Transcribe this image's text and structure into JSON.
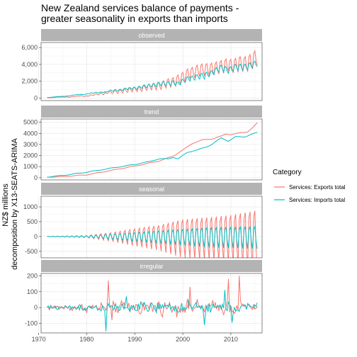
{
  "chart_data": {
    "type": "line",
    "title": "New Zealand services balance of payments -\ngreater seasonality in exports than imports",
    "ylabel_lines": [
      "NZ$ millions",
      "decomposition by X13-SEATS-ARIMA"
    ],
    "legend": {
      "title": "Category",
      "position": "right",
      "entries": [
        {
          "label": "Services: Exports total",
          "color": "#F8766D"
        },
        {
          "label": "Services: Imports total",
          "color": "#00BFC4"
        }
      ]
    },
    "x": {
      "range": [
        1970.5,
        2016.5
      ],
      "ticks": [
        1970,
        1980,
        1990,
        2000,
        2010
      ]
    },
    "grid": true,
    "panels": [
      {
        "label": "observed",
        "ylim": [
          -300,
          6600
        ],
        "yticks": [
          0,
          2000,
          4000,
          6000
        ],
        "ytick_labels": [
          "0",
          "2,000",
          "4,000",
          "6,000"
        ],
        "components": [
          "trend",
          "seasonal",
          "irregular"
        ]
      },
      {
        "label": "trend",
        "ylim": [
          -200,
          5300
        ],
        "yticks": [
          0,
          1000,
          2000,
          3000,
          4000,
          5000
        ],
        "ytick_labels": [
          "0",
          "1000",
          "2000",
          "3000",
          "4000",
          "5000"
        ],
        "components": [
          "trend"
        ]
      },
      {
        "label": "seasonal",
        "ylim": [
          -720,
          1360
        ],
        "yticks": [
          -500,
          0,
          500,
          1000
        ],
        "ytick_labels": [
          "-500",
          "0",
          "500",
          "1000"
        ],
        "components": [
          "seasonal"
        ]
      },
      {
        "label": "irregular",
        "ylim": [
          -160,
          215
        ],
        "yticks": [
          -100,
          0,
          100,
          200
        ],
        "ytick_labels": [
          "-100",
          "0",
          "100",
          "200"
        ],
        "components": [
          "irregular"
        ]
      }
    ],
    "series": [
      {
        "name": "Services: Exports total",
        "color": "#F8766D",
        "start": 1971.75,
        "end": 2015.5,
        "trend_knots": [
          [
            1971.75,
            60
          ],
          [
            1975,
            100
          ],
          [
            1980,
            260
          ],
          [
            1985,
            650
          ],
          [
            1990,
            1050
          ],
          [
            1995,
            1500
          ],
          [
            1998,
            1950
          ],
          [
            2000,
            2500
          ],
          [
            2002,
            3100
          ],
          [
            2004,
            3400
          ],
          [
            2006,
            3500
          ],
          [
            2008,
            3750
          ],
          [
            2009,
            3950
          ],
          [
            2010,
            3900
          ],
          [
            2012,
            4050
          ],
          [
            2013.5,
            4150
          ],
          [
            2014.5,
            4500
          ],
          [
            2015.5,
            4950
          ]
        ],
        "seasonal_amp_knots": [
          [
            1971.75,
            5
          ],
          [
            1980,
            40
          ],
          [
            1985,
            160
          ],
          [
            1990,
            320
          ],
          [
            1995,
            470
          ],
          [
            2000,
            720
          ],
          [
            2005,
            800
          ],
          [
            2010,
            900
          ],
          [
            2015.5,
            1100
          ]
        ],
        "irregular_amp": 45,
        "irregular_spikes": [
          [
            1984.5,
            170
          ],
          [
            1985.25,
            -80
          ],
          [
            2001.5,
            130
          ],
          [
            2009.5,
            180
          ],
          [
            2011.75,
            200
          ]
        ]
      },
      {
        "name": "Services: Imports total",
        "color": "#00BFC4",
        "start": 1971.75,
        "end": 2015.5,
        "trend_knots": [
          [
            1971.75,
            70
          ],
          [
            1975,
            200
          ],
          [
            1980,
            500
          ],
          [
            1985,
            850
          ],
          [
            1990,
            1200
          ],
          [
            1993,
            1450
          ],
          [
            1995,
            1700
          ],
          [
            1997,
            1700
          ],
          [
            1998,
            1850
          ],
          [
            1999,
            1700
          ],
          [
            2000,
            2000
          ],
          [
            2001,
            2300
          ],
          [
            2003,
            2500
          ],
          [
            2005,
            2800
          ],
          [
            2006,
            3000
          ],
          [
            2008,
            3600
          ],
          [
            2009.5,
            3300
          ],
          [
            2011,
            3700
          ],
          [
            2013,
            3700
          ],
          [
            2015.5,
            4100
          ]
        ],
        "seasonal_amp_knots": [
          [
            1971.75,
            5
          ],
          [
            1980,
            25
          ],
          [
            1985,
            90
          ],
          [
            1990,
            170
          ],
          [
            1995,
            240
          ],
          [
            2000,
            300
          ],
          [
            2005,
            370
          ],
          [
            2010,
            390
          ],
          [
            2015.5,
            420
          ]
        ],
        "irregular_amp": 35,
        "irregular_spikes": [
          [
            1984,
            -150
          ],
          [
            1988.25,
            70
          ],
          [
            2004.5,
            -110
          ],
          [
            2008.75,
            110
          ],
          [
            2010.25,
            -95
          ]
        ]
      }
    ]
  }
}
